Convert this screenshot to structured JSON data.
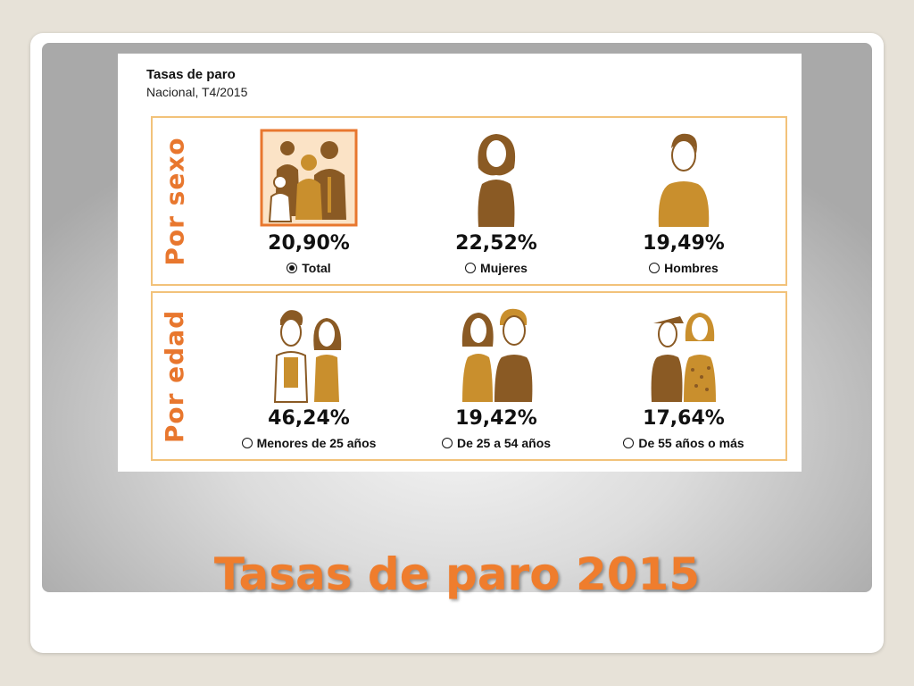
{
  "card": {
    "title": "Tasas de paro",
    "subtitle": "Nacional, T4/2015"
  },
  "sections": [
    {
      "label": "Por sexo",
      "items": [
        {
          "value": "20,90%",
          "option": "Total",
          "selected": true,
          "icon": "group-people-icon"
        },
        {
          "value": "22,52%",
          "option": "Mujeres",
          "selected": false,
          "icon": "woman-icon"
        },
        {
          "value": "19,49%",
          "option": "Hombres",
          "selected": false,
          "icon": "man-icon"
        }
      ]
    },
    {
      "label": "Por edad",
      "items": [
        {
          "value": "46,24%",
          "option": "Menores de 25 años",
          "selected": false,
          "icon": "young-couple-icon"
        },
        {
          "value": "19,42%",
          "option": "De 25 a 54 años",
          "selected": false,
          "icon": "adult-couple-icon"
        },
        {
          "value": "17,64%",
          "option": "De 55 años o más",
          "selected": false,
          "icon": "senior-couple-icon"
        }
      ]
    }
  ],
  "slide_title": "Tasas de paro 2015",
  "colors": {
    "accent_orange": "#e8772e",
    "panel_border": "#f2c27a",
    "figure_dark": "#8a5a24",
    "figure_mid": "#c98f2d"
  }
}
